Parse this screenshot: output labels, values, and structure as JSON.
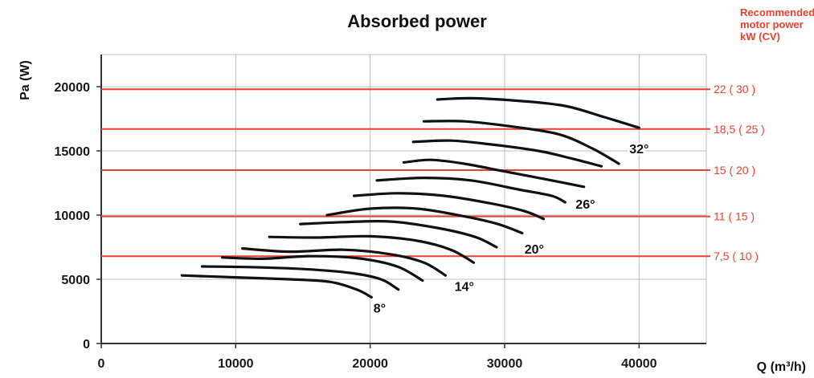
{
  "colors": {
    "accent": "#e8412f",
    "curve": "#111111",
    "axis": "#333333",
    "grid": "#bdbdbd"
  },
  "chart_data": {
    "type": "line",
    "title": "Absorbed power",
    "xlabel": "Q (m³/h)",
    "ylabel": "Pa (W)",
    "xlim": [
      0,
      45000
    ],
    "ylim": [
      0,
      22500
    ],
    "x_ticks": [
      0,
      10000,
      20000,
      30000,
      40000
    ],
    "y_ticks": [
      0,
      5000,
      10000,
      15000,
      20000
    ],
    "x_tick_labels": [
      "0",
      "10000",
      "20000",
      "30000",
      "40000"
    ],
    "y_tick_labels": [
      "0",
      "5000",
      "10000",
      "15000",
      "20000"
    ],
    "grid": true,
    "right_axis_title": [
      "Recommended",
      "motor power",
      "kW (CV)"
    ],
    "motor_power_lines": [
      {
        "y": 6800,
        "label": "7,5 ( 10 )"
      },
      {
        "y": 9900,
        "label": "11 ( 15 )"
      },
      {
        "y": 13500,
        "label": "15 ( 20 )"
      },
      {
        "y": 16700,
        "label": "18,5 ( 25 )"
      },
      {
        "y": 19800,
        "label": "22 ( 30 )"
      }
    ],
    "series": [
      {
        "points": [
          [
            6000,
            5300
          ],
          [
            10000,
            5150
          ],
          [
            14000,
            5000
          ],
          [
            17000,
            4800
          ],
          [
            19000,
            4200
          ],
          [
            20100,
            3600
          ]
        ]
      },
      {
        "points": [
          [
            7500,
            6000
          ],
          [
            11000,
            5950
          ],
          [
            15000,
            5800
          ],
          [
            18500,
            5500
          ],
          [
            20800,
            5000
          ],
          [
            22100,
            4200
          ]
        ]
      },
      {
        "points": [
          [
            9000,
            6700
          ],
          [
            12000,
            6600
          ],
          [
            15500,
            6800
          ],
          [
            19000,
            6650
          ],
          [
            22000,
            6000
          ],
          [
            23900,
            4900
          ]
        ]
      },
      {
        "points": [
          [
            10500,
            7400
          ],
          [
            14000,
            7150
          ],
          [
            18000,
            7300
          ],
          [
            21500,
            6950
          ],
          [
            24000,
            6300
          ],
          [
            25600,
            5300
          ]
        ]
      },
      {
        "points": [
          [
            12500,
            8300
          ],
          [
            16000,
            8250
          ],
          [
            20000,
            8350
          ],
          [
            23500,
            8000
          ],
          [
            26000,
            7300
          ],
          [
            27700,
            6300
          ]
        ]
      },
      {
        "points": [
          [
            14800,
            9300
          ],
          [
            18000,
            9450
          ],
          [
            21500,
            9500
          ],
          [
            25000,
            9000
          ],
          [
            27800,
            8300
          ],
          [
            29400,
            7500
          ]
        ]
      },
      {
        "points": [
          [
            16800,
            10000
          ],
          [
            20000,
            10500
          ],
          [
            23500,
            10500
          ],
          [
            27000,
            9900
          ],
          [
            29500,
            9300
          ],
          [
            31300,
            8600
          ]
        ]
      },
      {
        "points": [
          [
            18800,
            11500
          ],
          [
            22000,
            11700
          ],
          [
            25500,
            11500
          ],
          [
            29000,
            10900
          ],
          [
            31500,
            10300
          ],
          [
            32900,
            9700
          ]
        ]
      },
      {
        "points": [
          [
            20500,
            12700
          ],
          [
            24000,
            12900
          ],
          [
            27500,
            12700
          ],
          [
            31000,
            12000
          ],
          [
            33500,
            11500
          ],
          [
            34500,
            11000
          ]
        ]
      },
      {
        "points": [
          [
            22500,
            14100
          ],
          [
            24500,
            14300
          ],
          [
            27000,
            14000
          ],
          [
            30000,
            13400
          ],
          [
            33000,
            12800
          ],
          [
            35900,
            12200
          ]
        ]
      },
      {
        "points": [
          [
            23200,
            15700
          ],
          [
            26000,
            15800
          ],
          [
            29000,
            15500
          ],
          [
            32500,
            15000
          ],
          [
            35000,
            14400
          ],
          [
            37200,
            13800
          ]
        ]
      },
      {
        "points": [
          [
            24000,
            17300
          ],
          [
            27000,
            17300
          ],
          [
            30500,
            16900
          ],
          [
            34000,
            16300
          ],
          [
            36500,
            15200
          ],
          [
            38500,
            14000
          ]
        ]
      },
      {
        "points": [
          [
            25000,
            19000
          ],
          [
            27500,
            19100
          ],
          [
            31000,
            18900
          ],
          [
            34500,
            18500
          ],
          [
            37500,
            17600
          ],
          [
            40000,
            16800
          ]
        ]
      }
    ],
    "angle_labels": [
      {
        "text": "8°",
        "x": 20700,
        "y": 2400
      },
      {
        "text": "14°",
        "x": 27000,
        "y": 4100
      },
      {
        "text": "20°",
        "x": 32200,
        "y": 7000
      },
      {
        "text": "26°",
        "x": 36000,
        "y": 10500
      },
      {
        "text": "32°",
        "x": 40000,
        "y": 14800
      }
    ]
  }
}
